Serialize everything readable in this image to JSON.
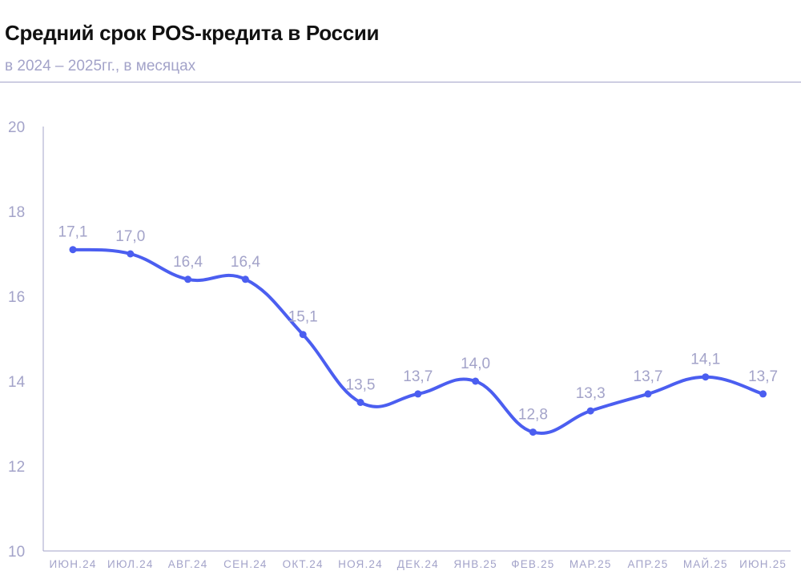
{
  "chart_data": {
    "type": "line",
    "title": "Средний срок POS-кредита в России",
    "subtitle": "в 2024 – 2025гг., в месяцах",
    "xlabel": "",
    "ylabel": "",
    "ylim": [
      10,
      20
    ],
    "yticks": [
      "10",
      "12",
      "14",
      "16",
      "18",
      "20"
    ],
    "grid": false,
    "categories": [
      "ИЮН.24",
      "ИЮЛ.24",
      "АВГ.24",
      "СЕН.24",
      "ОКТ.24",
      "НОЯ.24",
      "ДЕК.24",
      "ЯНВ.25",
      "ФЕВ.25",
      "МАР.25",
      "АПР.25",
      "МАЙ.25",
      "ИЮН.25"
    ],
    "series": [
      {
        "values": [
          17.1,
          17.0,
          16.4,
          16.4,
          15.1,
          13.5,
          13.7,
          14.0,
          12.8,
          13.3,
          13.7,
          14.1,
          13.7
        ],
        "labels": [
          "17,1",
          "17,0",
          "16,4",
          "16,4",
          "15,1",
          "13,5",
          "13,7",
          "14,0",
          "12,8",
          "13,3",
          "13,7",
          "14,1",
          "13,7"
        ]
      }
    ],
    "colors": {
      "line": "#4b5ef0",
      "text": "#a3a3c9",
      "axis": "#a3a3c9",
      "title": "#111111"
    }
  }
}
